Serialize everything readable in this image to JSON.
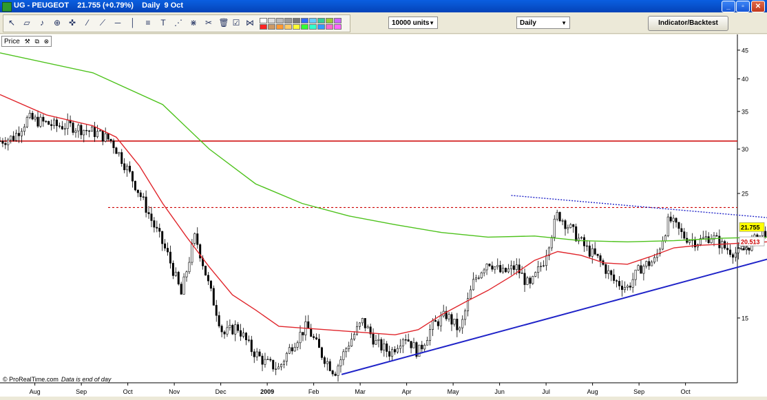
{
  "window": {
    "title": "UG - PEUGEOT    21.755 (+0.79%)    Daily  9 Oct"
  },
  "toolbar": {
    "units": "10000 units",
    "period": "Daily",
    "indicator_button": "Indicator/Backtest"
  },
  "panel": {
    "label": "Price"
  },
  "credit": {
    "source": "© ProRealTime.com",
    "note": "Data is end of day"
  },
  "chart_data": {
    "type": "candlestick",
    "symbol": "UG - PEUGEOT",
    "last": "21.755",
    "change": "+0.79%",
    "period": "Daily",
    "date": "9 Oct",
    "y_scale": "log",
    "ylim": [
      11.5,
      48
    ],
    "y_ticks": [
      15,
      20,
      25,
      30,
      35,
      40,
      45
    ],
    "x_labels": [
      "Aug",
      "Sep",
      "Oct",
      "Nov",
      "Dec",
      "2009",
      "Feb",
      "Mar",
      "Apr",
      "May",
      "Jun",
      "Jul",
      "Aug",
      "Sep",
      "Oct"
    ],
    "price_path": [
      [
        0,
        31
      ],
      [
        0.3,
        31.5
      ],
      [
        0.6,
        34
      ],
      [
        0.9,
        33.5
      ],
      [
        1.2,
        33
      ],
      [
        1.5,
        33
      ],
      [
        1.8,
        32.5
      ],
      [
        2.1,
        32
      ],
      [
        2.4,
        31
      ],
      [
        2.7,
        28
      ],
      [
        3.0,
        25
      ],
      [
        3.3,
        22
      ],
      [
        3.6,
        19.5
      ],
      [
        3.9,
        16.5
      ],
      [
        4.2,
        21
      ],
      [
        4.5,
        17
      ],
      [
        4.8,
        14
      ],
      [
        5.1,
        14.5
      ],
      [
        5.4,
        13.2
      ],
      [
        5.7,
        12.5
      ],
      [
        6.0,
        12.2
      ],
      [
        6.3,
        13.5
      ],
      [
        6.6,
        14.5
      ],
      [
        6.9,
        13
      ],
      [
        7.2,
        12
      ],
      [
        7.5,
        13.5
      ],
      [
        7.8,
        14.8
      ],
      [
        8.1,
        13.5
      ],
      [
        8.4,
        13
      ],
      [
        8.7,
        14
      ],
      [
        9.0,
        13
      ],
      [
        9.3,
        14.5
      ],
      [
        9.6,
        15.2
      ],
      [
        9.9,
        14.2
      ],
      [
        10.2,
        17.5
      ],
      [
        10.5,
        19
      ],
      [
        10.8,
        18
      ],
      [
        11.1,
        18.5
      ],
      [
        11.4,
        17
      ],
      [
        11.7,
        19
      ],
      [
        12.0,
        23
      ],
      [
        12.3,
        21.5
      ],
      [
        12.6,
        20
      ],
      [
        12.9,
        19
      ],
      [
        13.2,
        17.5
      ],
      [
        13.5,
        17
      ],
      [
        13.8,
        18.5
      ],
      [
        14.1,
        19
      ],
      [
        14.4,
        22.5
      ],
      [
        14.7,
        21
      ],
      [
        15.0,
        20.5
      ],
      [
        15.3,
        21
      ],
      [
        15.6,
        20
      ],
      [
        15.9,
        19.5
      ],
      [
        16.2,
        20.5
      ],
      [
        16.5,
        21.5
      ],
      [
        16.8,
        20.5
      ],
      [
        17.1,
        20
      ],
      [
        17.4,
        21.8
      ]
    ],
    "series": [
      {
        "name": "",
        "color": "#4dc21b",
        "values": [
          [
            0,
            44.5
          ],
          [
            2,
            41
          ],
          [
            3.5,
            36
          ],
          [
            4.5,
            30
          ],
          [
            5.5,
            26
          ],
          [
            6.5,
            24
          ],
          [
            7.5,
            22.8
          ],
          [
            8.5,
            22
          ],
          [
            9.5,
            21.3
          ],
          [
            10.5,
            20.9
          ],
          [
            11.5,
            21
          ],
          [
            12.5,
            20.6
          ],
          [
            13.5,
            20.5
          ],
          [
            14.5,
            20.6
          ],
          [
            15.5,
            20.8
          ],
          [
            16.5,
            20.9
          ],
          [
            17.4,
            21.1
          ]
        ]
      },
      {
        "name": "",
        "color": "#e0252b",
        "values": [
          [
            0,
            37.5
          ],
          [
            1,
            34.5
          ],
          [
            2,
            33
          ],
          [
            2.5,
            31.5
          ],
          [
            3.0,
            28
          ],
          [
            3.5,
            24
          ],
          [
            4.0,
            21
          ],
          [
            4.5,
            18.5
          ],
          [
            5.0,
            16.5
          ],
          [
            5.5,
            15.5
          ],
          [
            6.0,
            14.5
          ],
          [
            6.5,
            14.4
          ],
          [
            7.0,
            14.3
          ],
          [
            7.5,
            14.2
          ],
          [
            8.0,
            14.1
          ],
          [
            8.5,
            14.0
          ],
          [
            9.0,
            14.3
          ],
          [
            9.5,
            15.2
          ],
          [
            10.0,
            16.0
          ],
          [
            10.5,
            16.8
          ],
          [
            11.0,
            17.8
          ],
          [
            11.5,
            19
          ],
          [
            12.0,
            19.7
          ],
          [
            12.5,
            19.4
          ],
          [
            13.0,
            18.8
          ],
          [
            13.5,
            18.7
          ],
          [
            14.0,
            19.3
          ],
          [
            14.5,
            20.0
          ],
          [
            15.0,
            20.2
          ],
          [
            15.5,
            20.3
          ],
          [
            16.0,
            20.4
          ],
          [
            16.5,
            20.5
          ],
          [
            17.4,
            20.55
          ]
        ]
      }
    ],
    "levels": [
      {
        "value": 31,
        "color": "#cc0000",
        "style": "solid"
      },
      {
        "value": 23.6,
        "color": "#cc0000",
        "style": "dotted"
      }
    ],
    "trendlines": [
      {
        "from": [
          7.35,
          11.9
        ],
        "to": [
          17.7,
          20.3
        ],
        "color": "#1f23c8",
        "style": "solid"
      },
      {
        "from": [
          11.0,
          24.8
        ],
        "to": [
          17.7,
          22.2
        ],
        "color": "#1f23c8",
        "style": "dotted"
      }
    ],
    "tags": [
      {
        "text": "21.755",
        "value": 21.755,
        "bg": "#ffff00",
        "fg": "#000000"
      },
      {
        "text": "20.513",
        "value": 20.513,
        "bg": "#ffffff",
        "fg": "#cc0000"
      }
    ]
  }
}
